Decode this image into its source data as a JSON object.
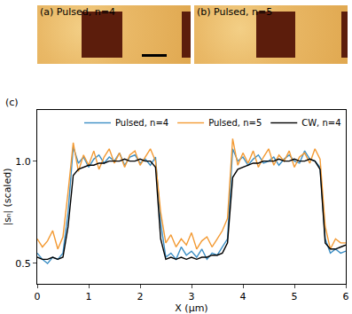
{
  "panels": [
    {
      "label": "(a) Pulsed, n=4"
    },
    {
      "label": "(b) Pulsed, n=5"
    }
  ],
  "chart_data": {
    "type": "line",
    "label": "(c)",
    "x_label": "X (μm)",
    "y_label": "|sₙ| (scaled)",
    "xlim": [
      0,
      6
    ],
    "xticks": [
      0,
      1,
      2,
      3,
      4,
      5,
      6
    ],
    "ylim": [
      0.4,
      1.25
    ],
    "yticks": [
      0.5,
      {
        "value": 1.0,
        "label": "1.0"
      }
    ],
    "legend": "top right",
    "grid": false,
    "x": [
      0.0,
      0.1,
      0.2,
      0.3,
      0.4,
      0.5,
      0.6,
      0.7,
      0.8,
      0.9,
      1.0,
      1.1,
      1.2,
      1.3,
      1.4,
      1.5,
      1.6,
      1.7,
      1.8,
      1.9,
      2.0,
      2.1,
      2.2,
      2.3,
      2.4,
      2.5,
      2.6,
      2.7,
      2.8,
      2.9,
      3.0,
      3.1,
      3.2,
      3.3,
      3.4,
      3.5,
      3.6,
      3.7,
      3.8,
      3.9,
      4.0,
      4.1,
      4.2,
      4.3,
      4.4,
      4.5,
      4.6,
      4.7,
      4.8,
      4.9,
      5.0,
      5.1,
      5.2,
      5.3,
      5.4,
      5.5,
      5.6,
      5.7,
      5.8,
      5.9,
      6.0
    ],
    "series": [
      {
        "name": "Pulsed, n=4",
        "color": "#3b8ec4",
        "values": [
          0.55,
          0.52,
          0.5,
          0.53,
          0.52,
          0.55,
          0.75,
          1.07,
          0.99,
          1.02,
          0.97,
          1.01,
          1.03,
          0.99,
          1.02,
          1.0,
          1.04,
          0.98,
          1.02,
          1.03,
          0.99,
          1.01,
          0.98,
          1.02,
          0.7,
          0.53,
          0.55,
          0.52,
          0.58,
          0.54,
          0.56,
          0.53,
          0.57,
          0.52,
          0.55,
          0.54,
          0.58,
          0.62,
          1.06,
          1.0,
          1.02,
          0.98,
          1.01,
          1.03,
          0.99,
          1.0,
          1.02,
          0.98,
          1.01,
          1.03,
          1.0,
          0.99,
          1.05,
          1.01,
          1.0,
          0.97,
          0.62,
          0.55,
          0.57,
          0.55,
          0.56
        ]
      },
      {
        "name": "Pulsed, n=5",
        "color": "#f39a33",
        "values": [
          0.62,
          0.58,
          0.61,
          0.66,
          0.57,
          0.63,
          0.85,
          1.09,
          0.95,
          1.03,
          0.98,
          1.05,
          0.96,
          1.02,
          1.06,
          0.99,
          1.04,
          0.97,
          1.03,
          1.05,
          0.98,
          1.02,
          1.06,
          1.0,
          0.75,
          0.6,
          0.64,
          0.58,
          0.62,
          0.59,
          0.65,
          0.57,
          0.61,
          0.63,
          0.58,
          0.62,
          0.66,
          0.72,
          1.11,
          0.98,
          1.04,
          0.99,
          1.05,
          0.97,
          1.02,
          1.06,
          0.98,
          1.03,
          1.0,
          1.05,
          0.97,
          1.02,
          1.04,
          0.99,
          1.06,
          1.01,
          0.68,
          0.57,
          0.62,
          0.6,
          0.6
        ]
      },
      {
        "name": "CW, n=4",
        "color": "#000000",
        "values": [
          0.53,
          0.52,
          0.52,
          0.53,
          0.52,
          0.53,
          0.68,
          0.93,
          0.96,
          0.97,
          0.98,
          0.98,
          0.99,
          0.99,
          1.0,
          1.0,
          1.0,
          1.01,
          1.0,
          1.0,
          1.01,
          1.0,
          1.0,
          0.97,
          0.62,
          0.52,
          0.53,
          0.52,
          0.53,
          0.52,
          0.53,
          0.52,
          0.53,
          0.53,
          0.54,
          0.54,
          0.55,
          0.6,
          0.92,
          0.96,
          0.97,
          0.98,
          0.99,
          0.99,
          1.0,
          1.0,
          1.0,
          1.01,
          1.0,
          1.0,
          1.01,
          1.0,
          1.0,
          1.01,
          1.0,
          0.96,
          0.6,
          0.57,
          0.57,
          0.58,
          0.59
        ]
      }
    ]
  }
}
